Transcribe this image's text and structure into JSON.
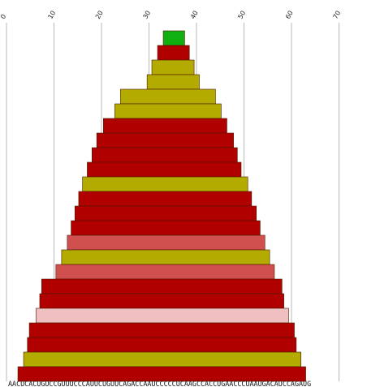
{
  "chart_data": {
    "type": "bar",
    "orientation": "stacked-horizontal-bands",
    "title": "",
    "xlabel": "",
    "ylabel": "",
    "x_ticks": [
      "0",
      "10",
      "20",
      "30",
      "40",
      "50",
      "60",
      "70"
    ],
    "xlim": [
      0,
      70
    ],
    "grid": true,
    "sequence": "AACUCACUGUCCGUUUCCCAUUCUGUUCAGACCAAUCCCCCUCAAGCCACCUGAACCCUAAUGACAUCCAGAUG",
    "colors": {
      "red": "#b00000",
      "olive": "#b3ab00",
      "green": "#10b010",
      "salmon": "#d05050",
      "pink": "#f0c0c0"
    },
    "bands": [
      {
        "start": 33.0,
        "end": 37.5,
        "color": "green"
      },
      {
        "start": 31.8,
        "end": 38.5,
        "color": "red"
      },
      {
        "start": 30.6,
        "end": 39.5,
        "color": "olive"
      },
      {
        "start": 29.6,
        "end": 40.6,
        "color": "olive"
      },
      {
        "start": 24.0,
        "end": 44.0,
        "color": "olive"
      },
      {
        "start": 22.8,
        "end": 45.2,
        "color": "olive"
      },
      {
        "start": 20.4,
        "end": 46.4,
        "color": "red"
      },
      {
        "start": 19.0,
        "end": 47.8,
        "color": "red"
      },
      {
        "start": 18.0,
        "end": 48.6,
        "color": "red"
      },
      {
        "start": 17.0,
        "end": 49.4,
        "color": "red"
      },
      {
        "start": 16.0,
        "end": 50.8,
        "color": "olive"
      },
      {
        "start": 15.2,
        "end": 51.6,
        "color": "red"
      },
      {
        "start": 14.4,
        "end": 52.6,
        "color": "red"
      },
      {
        "start": 13.6,
        "end": 53.4,
        "color": "red"
      },
      {
        "start": 12.8,
        "end": 54.4,
        "color": "salmon"
      },
      {
        "start": 11.6,
        "end": 55.4,
        "color": "olive"
      },
      {
        "start": 10.4,
        "end": 56.4,
        "color": "salmon"
      },
      {
        "start": 7.4,
        "end": 58.0,
        "color": "red"
      },
      {
        "start": 7.0,
        "end": 58.4,
        "color": "red"
      },
      {
        "start": 6.2,
        "end": 59.4,
        "color": "pink"
      },
      {
        "start": 4.8,
        "end": 60.6,
        "color": "red"
      },
      {
        "start": 4.4,
        "end": 61.0,
        "color": "red"
      },
      {
        "start": 3.6,
        "end": 62.0,
        "color": "olive"
      },
      {
        "start": 2.4,
        "end": 63.0,
        "color": "red"
      }
    ]
  }
}
